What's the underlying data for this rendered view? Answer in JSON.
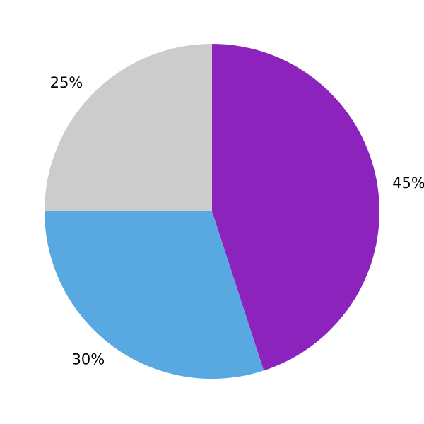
{
  "figure": {
    "background": "#ffffff"
  },
  "chart_data": {
    "type": "pie",
    "title": "",
    "labels": [
      "45%",
      "30%",
      "25%"
    ],
    "values": [
      45,
      30,
      25
    ],
    "colors": [
      "#8C23BC",
      "#58A9E2",
      "#CCCCCC"
    ],
    "label_color": "#000000",
    "start_angle": 90,
    "counterclock": false,
    "label_distance": 1.09,
    "legend_position": "none",
    "grid": false
  }
}
